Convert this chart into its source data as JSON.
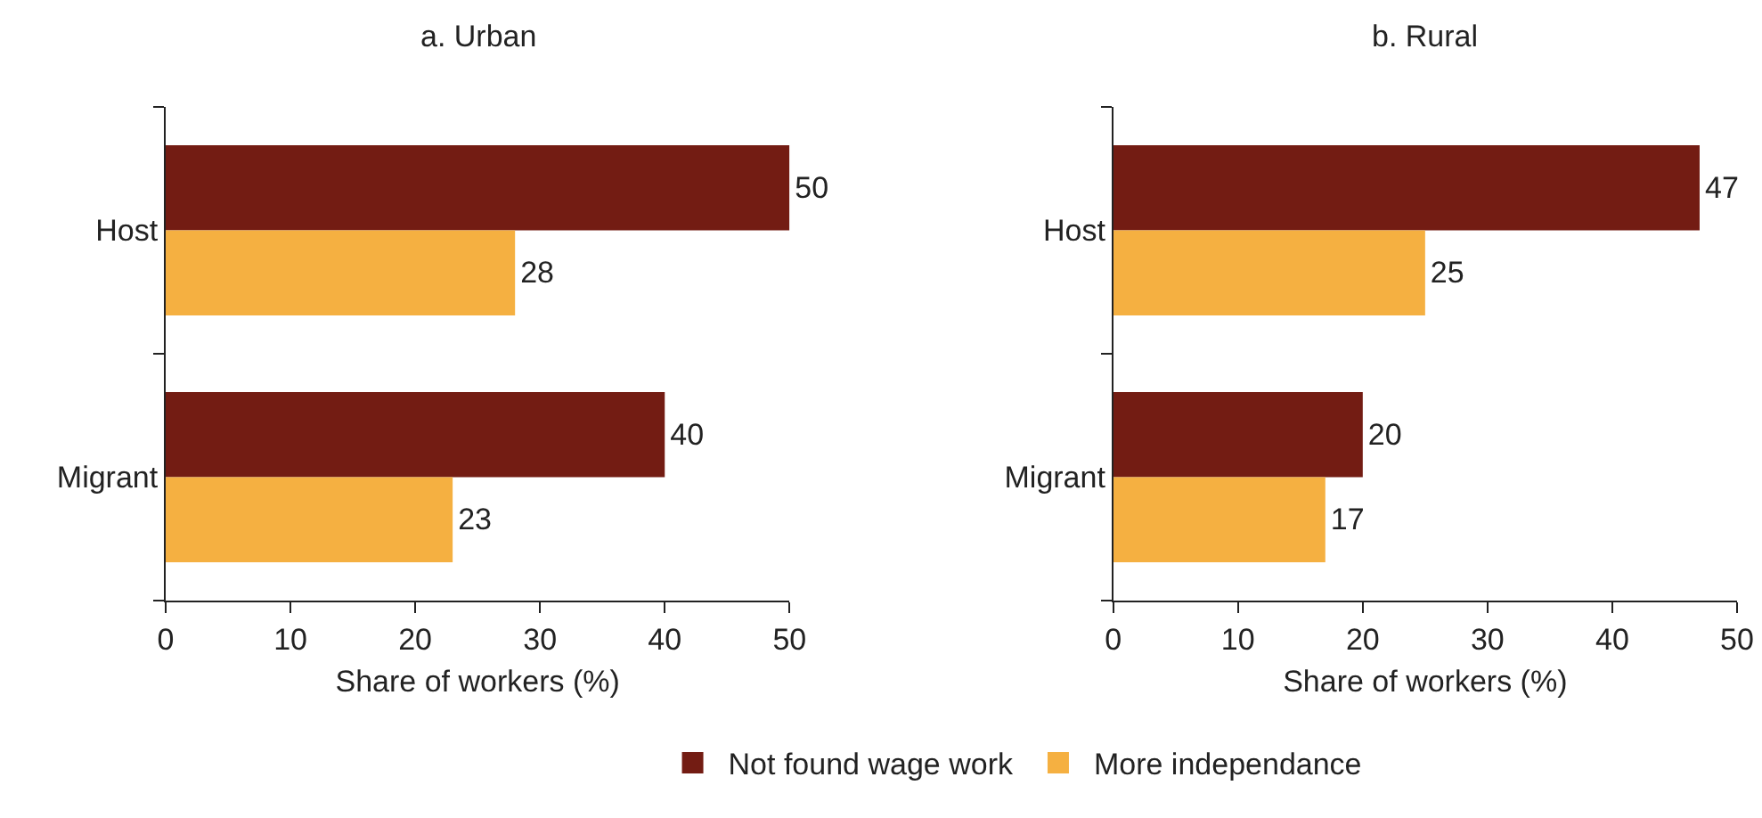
{
  "chart_data": [
    {
      "type": "bar",
      "orientation": "horizontal",
      "title": "a. Urban",
      "xlabel": "Share of workers (%)",
      "categories": [
        "Host",
        "Migrant"
      ],
      "series": [
        {
          "name": "Not found wage work",
          "color": "#731c13",
          "values": [
            50,
            40
          ]
        },
        {
          "name": "More independance",
          "color": "#f5b041",
          "values": [
            28,
            23
          ]
        }
      ],
      "xlim": [
        0,
        50
      ],
      "xticks": [
        0,
        10,
        20,
        30,
        40,
        50
      ],
      "data_labels": true,
      "grid": false,
      "legend": "bottom"
    },
    {
      "type": "bar",
      "orientation": "horizontal",
      "title": "b. Rural",
      "xlabel": "Share of workers (%)",
      "categories": [
        "Host",
        "Migrant"
      ],
      "series": [
        {
          "color": "#731c13",
          "values": [
            47,
            20
          ]
        },
        {
          "color": "#f5b041",
          "values": [
            25,
            17
          ]
        }
      ],
      "xlim": [
        0,
        50
      ],
      "xticks": [
        0,
        10,
        20,
        30,
        40,
        50
      ],
      "data_labels": true,
      "grid": false
    }
  ]
}
